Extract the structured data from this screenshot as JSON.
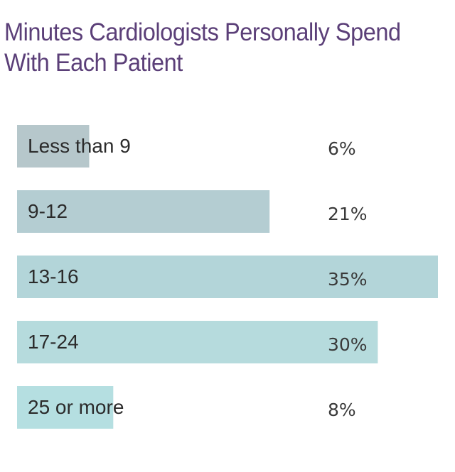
{
  "chart_data": {
    "type": "bar",
    "orientation": "horizontal",
    "title": "Minutes Cardiologists Personally Spend With Each Patient",
    "categories": [
      "Less than 9",
      "9-12",
      "13-16",
      "17-24",
      "25 or more"
    ],
    "values": [
      6,
      21,
      35,
      30,
      8
    ],
    "value_labels": [
      "6%",
      "21%",
      "35%",
      "30%",
      "8%"
    ],
    "unit": "%",
    "xlim": [
      0,
      35
    ],
    "grid": false,
    "legend": "none"
  },
  "colors": {
    "title": "#5b3f78",
    "bars": [
      "#b6c7cb",
      "#b4cdd2",
      "#b3d5d9",
      "#b6dbdd",
      "#b5dfe1"
    ],
    "label_text": "#2b2b2b",
    "value_text": "#3a3a3a"
  }
}
